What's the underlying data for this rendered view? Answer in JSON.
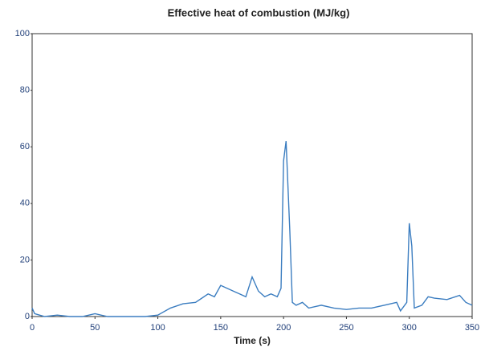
{
  "chart_data": {
    "type": "line",
    "title": "Effective heat of combustion (MJ/kg)",
    "xlabel": "Time (s)",
    "x": [
      0,
      2,
      10,
      20,
      30,
      40,
      50,
      60,
      70,
      80,
      90,
      100,
      110,
      120,
      130,
      140,
      145,
      150,
      160,
      165,
      170,
      175,
      180,
      185,
      190,
      195,
      198,
      200,
      202,
      205,
      207,
      210,
      215,
      220,
      230,
      240,
      250,
      260,
      270,
      280,
      290,
      293,
      298,
      300,
      302,
      304,
      310,
      315,
      320,
      330,
      340,
      345,
      350
    ],
    "series": [
      {
        "name": "Effective heat of combustion",
        "color": "#3b7dc0",
        "values": [
          3,
          1,
          0,
          0.5,
          0,
          0,
          1,
          0,
          0,
          0,
          0,
          0.5,
          3,
          4.5,
          5,
          8,
          7,
          11,
          9,
          8,
          7,
          14,
          9,
          7,
          8,
          7,
          10,
          55,
          62,
          30,
          5,
          4,
          5,
          3,
          4,
          3,
          2.5,
          3,
          3,
          4,
          5,
          2,
          5,
          33,
          25,
          3,
          4,
          7,
          6.5,
          6,
          7.5,
          5,
          4
        ]
      }
    ],
    "xlim": [
      0,
      350
    ],
    "xticks": [
      0,
      50,
      100,
      150,
      200,
      250,
      300,
      350
    ],
    "ylim": [
      0,
      100
    ],
    "yticks": [
      0,
      20,
      40,
      60,
      80,
      100
    ]
  }
}
